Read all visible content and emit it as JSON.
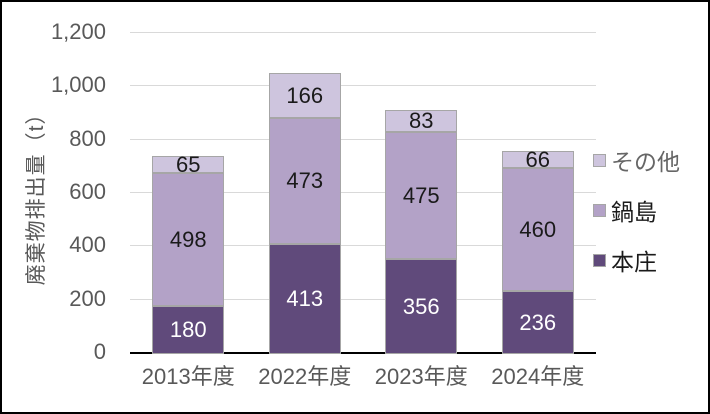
{
  "chart_data": {
    "type": "bar",
    "stacked": true,
    "title": "",
    "xlabel": "",
    "ylabel": "廃棄物排出量（t）",
    "ylim": [
      0,
      1200
    ],
    "ytick_interval": 200,
    "yticks": [
      {
        "value": 0,
        "label": "0"
      },
      {
        "value": 200,
        "label": "200"
      },
      {
        "value": 400,
        "label": "400"
      },
      {
        "value": 600,
        "label": "600"
      },
      {
        "value": 800,
        "label": "800"
      },
      {
        "value": 1000,
        "label": "1,000"
      },
      {
        "value": 1200,
        "label": "1,200"
      }
    ],
    "grid": true,
    "categories": [
      "2013年度",
      "2022年度",
      "2023年度",
      "2024年度"
    ],
    "series": [
      {
        "name": "本庄",
        "color": "#604a7b",
        "label_color": "#ffffff",
        "values": [
          180,
          413,
          356,
          236
        ]
      },
      {
        "name": "鍋島",
        "color": "#b3a2c7",
        "label_color": "#1a1a1a",
        "values": [
          498,
          473,
          475,
          460
        ]
      },
      {
        "name": "その他",
        "color": "#cec5de",
        "label_color": "#1a1a1a",
        "values": [
          65,
          166,
          83,
          66
        ]
      }
    ],
    "totals": [
      743,
      1052,
      914,
      762
    ],
    "legend_position": "right",
    "legend": [
      {
        "label": "その他",
        "color": "#cec5de",
        "text_color": "#666666"
      },
      {
        "label": "鍋島",
        "color": "#b3a2c7",
        "text_color": "#1a1a1a"
      },
      {
        "label": "本庄",
        "color": "#604a7b",
        "text_color": "#1a1a1a"
      }
    ]
  },
  "style": {
    "gridline_color": "#d9d9d9",
    "axis_line_color": "#000000",
    "tick_label_color": "#595959",
    "category_label_color": "#595959",
    "axis_title_color": "#595959",
    "segment_border_color": "#a6a6a6",
    "chart_border_color": "#000000",
    "background_color": "#ffffff"
  }
}
